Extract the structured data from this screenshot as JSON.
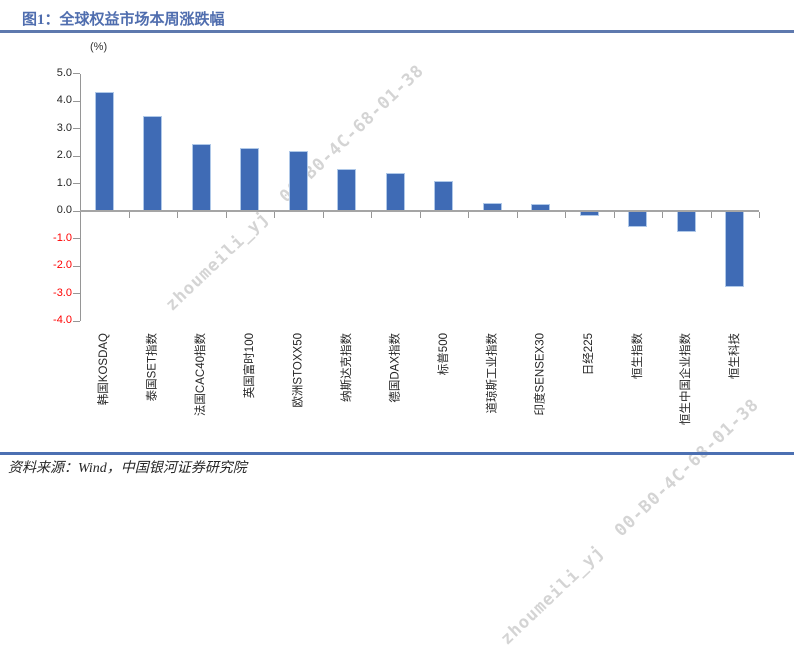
{
  "header": {
    "title": "图1：全球权益市场本周涨跌幅"
  },
  "footer": {
    "source": "资料来源：Wind，中国银河证券研究院"
  },
  "watermark": {
    "text": "zhoumeili_yj  00-B0-4C-68-01-38"
  },
  "chart_data": {
    "type": "bar",
    "title": "图1：全球权益市场本周涨跌幅",
    "unit_label": "(%)",
    "categories": [
      "韩国KOSDAQ",
      "泰国SET指数",
      "法国CAC40指数",
      "英国富时100",
      "欧洲STOXX50",
      "纳斯达克指数",
      "德国DAX指数",
      "标普500",
      "道琼斯工业指数",
      "印度SENSEX30",
      "日经225",
      "恒生指数",
      "恒生中国企业指数",
      "恒生科技"
    ],
    "values": [
      4.33,
      3.46,
      2.43,
      2.3,
      2.18,
      1.52,
      1.38,
      1.09,
      0.28,
      0.25,
      -0.18,
      -0.57,
      -0.77,
      -2.76
    ],
    "xlabel": "",
    "ylabel": "(%)",
    "ylim": [
      -4.0,
      5.0
    ],
    "ytick_step": 1.0,
    "grid": false,
    "legend": "none",
    "bar_color": "#3F6BB5",
    "negative_tick_label_color": "#FF0000"
  },
  "colors": {
    "bar": "#3F6BB5",
    "bar_border": "#AFC8E8",
    "title_blue": "#4F6DAE",
    "top_rule": "#5E79AE",
    "bottom_rule": "#4C70B2",
    "axis_gray": "#969696",
    "tick_label_dark": "#262626",
    "tick_label_red": "#FF0000",
    "watermark_gray": "#D4D4D4"
  }
}
